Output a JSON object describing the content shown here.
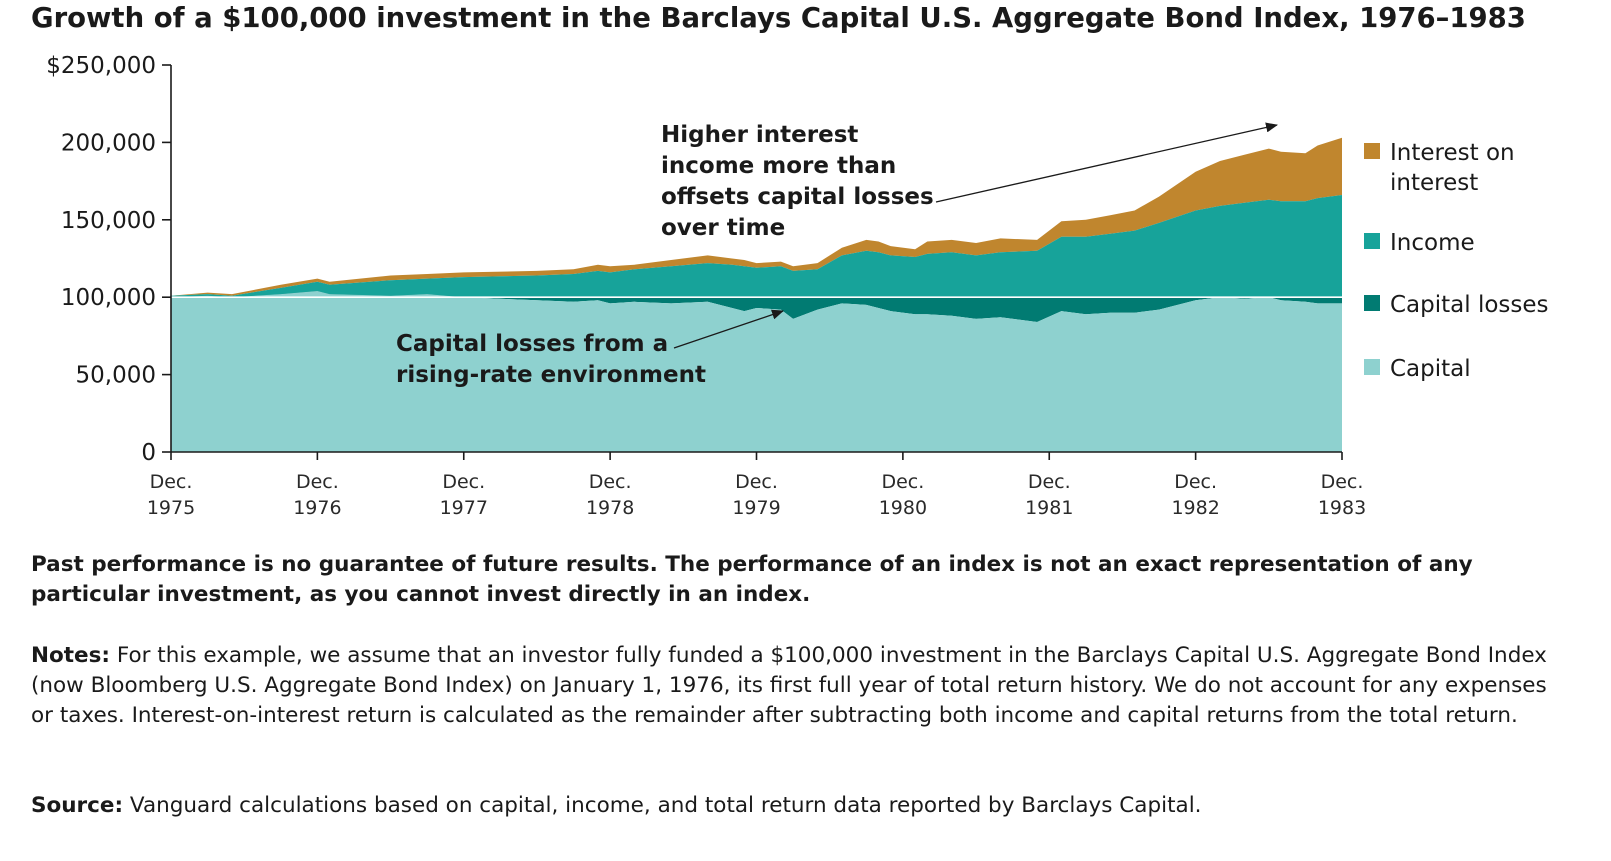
{
  "title": "Growth of a $100,000 investment in the Barclays Capital U.S. Aggregate Bond Index, 1976–1983",
  "colors": {
    "interest_on_interest": "#c0862e",
    "income": "#17a39a",
    "capital_losses": "#017b72",
    "capital": "#8ed1cf"
  },
  "chart_data": {
    "type": "area",
    "title": "Growth of a $100,000 investment in the Barclays Capital U.S. Aggregate Bond Index, 1976–1983",
    "xlabel": "",
    "ylabel": "",
    "ylim": [
      0,
      250000
    ],
    "y_ticks": [
      "$250,000",
      "200,000",
      "150,000",
      "100,000",
      "50,000",
      "0"
    ],
    "y_tick_values": [
      250000,
      200000,
      150000,
      100000,
      50000,
      0
    ],
    "x_ticks": [
      {
        "line1": "Dec.",
        "line2": "1975",
        "t": 0
      },
      {
        "line1": "Dec.",
        "line2": "1976",
        "t": 12
      },
      {
        "line1": "Dec.",
        "line2": "1977",
        "t": 24
      },
      {
        "line1": "Dec.",
        "line2": "1978",
        "t": 36
      },
      {
        "line1": "Dec.",
        "line2": "1979",
        "t": 48
      },
      {
        "line1": "Dec.",
        "line2": "1980",
        "t": 60
      },
      {
        "line1": "Dec.",
        "line2": "1981",
        "t": 72
      },
      {
        "line1": "Dec.",
        "line2": "1982",
        "t": 84
      },
      {
        "line1": "Dec.",
        "line2": "1983",
        "t": 96
      }
    ],
    "grid": false,
    "legend_position": "right",
    "stack_note": "capital, income and interest-on-interest stack upward; capital losses fill the gap between capital value and 100,000",
    "series": [
      {
        "name": "Interest on interest",
        "key": "interest_on_interest",
        "points": [
          [
            0,
            0
          ],
          [
            12,
            0
          ],
          [
            24,
            0
          ],
          [
            36,
            0
          ],
          [
            48,
            0
          ],
          [
            60,
            0
          ],
          [
            72,
            5000
          ],
          [
            84,
            20000
          ],
          [
            96,
            37000
          ]
        ]
      },
      {
        "name": "Income",
        "key": "income",
        "points": [
          [
            0,
            0
          ],
          [
            12,
            10000
          ],
          [
            24,
            15000
          ],
          [
            36,
            21000
          ],
          [
            48,
            30000
          ],
          [
            60,
            40000
          ],
          [
            72,
            49000
          ],
          [
            84,
            58000
          ],
          [
            96,
            70000
          ]
        ]
      },
      {
        "name": "Capital losses",
        "key": "capital_losses",
        "points": [
          [
            0,
            0
          ],
          [
            12,
            0
          ],
          [
            24,
            1000
          ],
          [
            36,
            4000
          ],
          [
            48,
            7000
          ],
          [
            60,
            12000
          ],
          [
            72,
            12000
          ],
          [
            84,
            3000
          ],
          [
            96,
            4000
          ]
        ]
      },
      {
        "name": "Capital",
        "key": "capital",
        "points": [
          [
            0,
            100000
          ],
          [
            12,
            102000
          ],
          [
            24,
            99000
          ],
          [
            36,
            96000
          ],
          [
            48,
            93000
          ],
          [
            60,
            88000
          ],
          [
            72,
            88000
          ],
          [
            84,
            97000
          ],
          [
            96,
            96000
          ]
        ]
      }
    ],
    "top_line": [
      [
        0,
        101000
      ],
      [
        3,
        103000
      ],
      [
        5,
        102000
      ],
      [
        9,
        108000
      ],
      [
        12,
        112000
      ],
      [
        13,
        110000
      ],
      [
        18,
        114000
      ],
      [
        21,
        115000
      ],
      [
        24,
        116000
      ],
      [
        30,
        117000
      ],
      [
        33,
        118000
      ],
      [
        35,
        121000
      ],
      [
        36,
        120000
      ],
      [
        38,
        121000
      ],
      [
        41,
        124000
      ],
      [
        44,
        127000
      ],
      [
        46,
        125000
      ],
      [
        47,
        124000
      ],
      [
        48,
        122000
      ],
      [
        50,
        123000
      ],
      [
        51,
        120000
      ],
      [
        53,
        122000
      ],
      [
        55,
        132000
      ],
      [
        57,
        137000
      ],
      [
        58,
        136000
      ],
      [
        59,
        133000
      ],
      [
        61,
        131000
      ],
      [
        62,
        136000
      ],
      [
        64,
        137000
      ],
      [
        66,
        135000
      ],
      [
        68,
        138000
      ],
      [
        71,
        137000
      ],
      [
        73,
        149000
      ],
      [
        75,
        150000
      ],
      [
        77,
        153000
      ],
      [
        79,
        156000
      ],
      [
        81,
        165000
      ],
      [
        84,
        181000
      ],
      [
        86,
        188000
      ],
      [
        88,
        192000
      ],
      [
        90,
        196000
      ],
      [
        91,
        194000
      ],
      [
        93,
        193000
      ],
      [
        94,
        198000
      ],
      [
        96,
        203000
      ]
    ],
    "income_top": [
      [
        0,
        101000
      ],
      [
        3,
        102000
      ],
      [
        5,
        101000
      ],
      [
        9,
        106000
      ],
      [
        12,
        110000
      ],
      [
        13,
        108000
      ],
      [
        18,
        111000
      ],
      [
        21,
        112000
      ],
      [
        24,
        113000
      ],
      [
        30,
        114000
      ],
      [
        33,
        115000
      ],
      [
        35,
        117000
      ],
      [
        36,
        116000
      ],
      [
        38,
        118000
      ],
      [
        41,
        120000
      ],
      [
        44,
        122000
      ],
      [
        46,
        121000
      ],
      [
        47,
        120000
      ],
      [
        48,
        119000
      ],
      [
        50,
        120000
      ],
      [
        51,
        117000
      ],
      [
        53,
        118000
      ],
      [
        55,
        127000
      ],
      [
        57,
        130000
      ],
      [
        58,
        129000
      ],
      [
        59,
        127000
      ],
      [
        61,
        126000
      ],
      [
        62,
        128000
      ],
      [
        64,
        129000
      ],
      [
        66,
        127000
      ],
      [
        68,
        129000
      ],
      [
        71,
        130000
      ],
      [
        73,
        139000
      ],
      [
        75,
        139000
      ],
      [
        77,
        141000
      ],
      [
        79,
        143000
      ],
      [
        81,
        148000
      ],
      [
        84,
        156000
      ],
      [
        86,
        159000
      ],
      [
        88,
        161000
      ],
      [
        90,
        163000
      ],
      [
        91,
        162000
      ],
      [
        93,
        162000
      ],
      [
        94,
        164000
      ],
      [
        96,
        166000
      ]
    ],
    "capital_top": [
      [
        0,
        100000
      ],
      [
        3,
        101000
      ],
      [
        5,
        100000
      ],
      [
        9,
        102000
      ],
      [
        12,
        104000
      ],
      [
        13,
        102000
      ],
      [
        18,
        101000
      ],
      [
        21,
        102000
      ],
      [
        24,
        100000
      ],
      [
        30,
        98000
      ],
      [
        33,
        97000
      ],
      [
        35,
        98000
      ],
      [
        36,
        96000
      ],
      [
        38,
        97000
      ],
      [
        41,
        96000
      ],
      [
        44,
        97000
      ],
      [
        46,
        93000
      ],
      [
        47,
        91000
      ],
      [
        48,
        93000
      ],
      [
        50,
        92000
      ],
      [
        51,
        86000
      ],
      [
        53,
        92000
      ],
      [
        55,
        96000
      ],
      [
        57,
        95000
      ],
      [
        58,
        93000
      ],
      [
        59,
        91000
      ],
      [
        61,
        89000
      ],
      [
        62,
        89000
      ],
      [
        64,
        88000
      ],
      [
        66,
        86000
      ],
      [
        68,
        87000
      ],
      [
        71,
        84000
      ],
      [
        73,
        91000
      ],
      [
        75,
        89000
      ],
      [
        77,
        90000
      ],
      [
        79,
        90000
      ],
      [
        81,
        92000
      ],
      [
        84,
        98000
      ],
      [
        86,
        100000
      ],
      [
        88,
        99000
      ],
      [
        90,
        100000
      ],
      [
        91,
        98000
      ],
      [
        93,
        97000
      ],
      [
        94,
        96000
      ],
      [
        96,
        96000
      ]
    ],
    "annotations": [
      {
        "text_lines": [
          "Higher interest",
          "income more than",
          "offsets capital losses",
          "over time"
        ]
      },
      {
        "text_lines": [
          "Capital losses from a",
          "rising-rate environment"
        ]
      }
    ],
    "legend": [
      {
        "key": "interest_on_interest",
        "lines": [
          "Interest on",
          "interest"
        ]
      },
      {
        "key": "income",
        "lines": [
          "Income"
        ]
      },
      {
        "key": "capital_losses",
        "lines": [
          "Capital losses"
        ]
      },
      {
        "key": "capital",
        "lines": [
          "Capital"
        ]
      }
    ]
  },
  "footer": {
    "disclaimer": "Past performance is no guarantee of future results. The performance of an index is not an exact representation of any particular investment, as you cannot invest directly in an index.",
    "notes_label": "Notes:",
    "notes_text": " For this example, we assume that an investor fully funded a $100,000 investment in the Barclays Capital U.S. Aggregate Bond Index (now Bloomberg U.S. Aggregate Bond Index) on January 1, 1976, its first full year of total return history. We do not account for any expenses or taxes. Interest-on-interest return is calculated as the remainder after subtracting both income and capital returns from the total return.",
    "source_label": "Source:",
    "source_text": " Vanguard calculations based on capital, income, and total return data reported by Barclays Capital."
  }
}
